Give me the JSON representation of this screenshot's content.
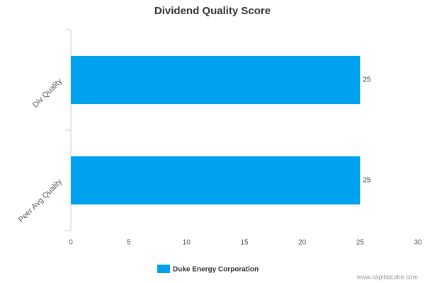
{
  "chart_data": {
    "type": "bar",
    "orientation": "horizontal",
    "title": "Dividend Quality Score",
    "categories": [
      "Div Quality",
      "Peer Avg Quality"
    ],
    "series": [
      {
        "name": "Duke Energy Corporation",
        "color": "#00a2f0",
        "values": [
          25,
          25
        ]
      }
    ],
    "xlim": [
      0,
      30
    ],
    "xticks": [
      0,
      5,
      10,
      15,
      20,
      25,
      30
    ],
    "grid": false,
    "legend": "bottom",
    "watermark": "www.capitalcube.com"
  }
}
